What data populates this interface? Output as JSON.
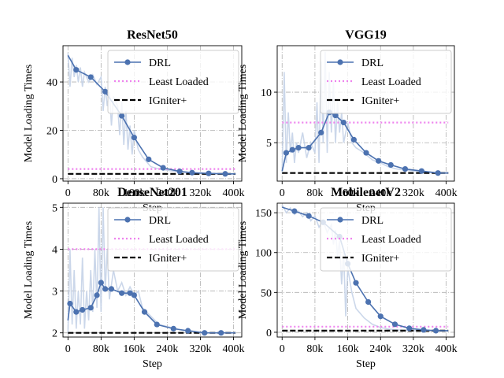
{
  "chart_data": [
    {
      "type": "line",
      "title": "ResNet50",
      "xlabel": "Step",
      "ylabel": "Model Loading Times",
      "xlim": [
        -12000,
        420000
      ],
      "ylim": [
        -1,
        55
      ],
      "xticks": [
        0,
        80000,
        160000,
        240000,
        320000,
        400000
      ],
      "xtick_labels": [
        "0",
        "80k",
        "160k",
        "240k",
        "320k",
        "400k"
      ],
      "yticks": [
        0,
        20,
        40
      ],
      "ytick_labels": [
        "0",
        "20",
        "40"
      ],
      "grid": true,
      "legend_position": "upper-right",
      "series": [
        {
          "name": "DRL",
          "style": "line-marker",
          "color": "#4c72b0",
          "x": [
            0,
            20000,
            55000,
            90000,
            130000,
            160000,
            195000,
            230000,
            270000,
            300000,
            340000,
            380000,
            405000
          ],
          "y": [
            51,
            45,
            42,
            36,
            26,
            17,
            8,
            4.5,
            3,
            2.5,
            2.2,
            2,
            2
          ]
        },
        {
          "name": "raw",
          "style": "raw",
          "color": "#c5d3e8",
          "x": [
            0,
            5000,
            10000,
            15000,
            20000,
            25000,
            30000,
            35000,
            40000,
            50000,
            60000,
            70000,
            80000,
            85000,
            90000,
            95000,
            100000,
            105000,
            110000,
            120000,
            125000,
            130000,
            135000,
            140000,
            145000,
            150000,
            155000,
            160000,
            170000,
            180000,
            190000,
            200000,
            220000,
            240000,
            260000,
            280000,
            300000,
            320000,
            350000,
            380000,
            405000
          ],
          "y": [
            52,
            38,
            50,
            42,
            47,
            40,
            46,
            38,
            44,
            40,
            43,
            39,
            42,
            28,
            38,
            30,
            36,
            22,
            34,
            30,
            18,
            32,
            14,
            28,
            12,
            22,
            10,
            20,
            12,
            9,
            7,
            5,
            4,
            3.5,
            3,
            2.8,
            2.5,
            2.2,
            2,
            2,
            2
          ]
        },
        {
          "name": "Least Loaded",
          "style": "dotted",
          "color": "#ee82ee",
          "x": [
            0,
            405000
          ],
          "y": [
            4,
            4
          ]
        },
        {
          "name": "IGniter+",
          "style": "dashed",
          "color": "#000000",
          "x": [
            0,
            405000
          ],
          "y": [
            2,
            2
          ]
        }
      ]
    },
    {
      "type": "line",
      "title": "VGG19",
      "xlabel": "Step",
      "ylabel": "Model Loading Times",
      "xlim": [
        -12000,
        420000
      ],
      "ylim": [
        1.2,
        14.6
      ],
      "xticks": [
        0,
        80000,
        160000,
        240000,
        320000,
        400000
      ],
      "xtick_labels": [
        "0",
        "80k",
        "160k",
        "240k",
        "320k",
        "400k"
      ],
      "yticks": [
        5,
        10
      ],
      "ytick_labels": [
        "5",
        "10"
      ],
      "grid": true,
      "legend_position": "upper-right",
      "series": [
        {
          "name": "DRL",
          "style": "line-marker",
          "color": "#4c72b0",
          "x": [
            0,
            10000,
            25000,
            40000,
            65000,
            95000,
            115000,
            130000,
            150000,
            175000,
            205000,
            235000,
            265000,
            300000,
            340000,
            380000,
            405000
          ],
          "y": [
            2.2,
            4,
            4.3,
            4.5,
            4.5,
            6,
            8,
            7.7,
            7,
            5.3,
            4,
            3.2,
            2.8,
            2.4,
            2.2,
            2,
            2
          ]
        },
        {
          "name": "raw",
          "style": "raw",
          "color": "#c5d3e8",
          "x": [
            0,
            5000,
            10000,
            15000,
            20000,
            25000,
            30000,
            35000,
            40000,
            50000,
            60000,
            70000,
            80000,
            85000,
            90000,
            95000,
            100000,
            105000,
            110000,
            115000,
            120000,
            125000,
            130000,
            135000,
            140000,
            145000,
            150000,
            160000,
            170000,
            180000,
            200000,
            220000,
            240000,
            260000,
            280000,
            300000,
            320000,
            350000,
            380000,
            405000
          ],
          "y": [
            2,
            12,
            3,
            8,
            4,
            6,
            3,
            5,
            4,
            6,
            3.5,
            5,
            4,
            9,
            3,
            13,
            5,
            14,
            4,
            12,
            6,
            11,
            5,
            9,
            6,
            8,
            5,
            7,
            5,
            4.5,
            4,
            3.3,
            3,
            2.6,
            2.4,
            2.3,
            2.2,
            2.1,
            2,
            2
          ]
        },
        {
          "name": "Least Loaded",
          "style": "dotted",
          "color": "#ee82ee",
          "x": [
            0,
            405000
          ],
          "y": [
            7,
            7
          ]
        },
        {
          "name": "IGniter+",
          "style": "dashed",
          "color": "#000000",
          "x": [
            0,
            405000
          ],
          "y": [
            2,
            2
          ]
        }
      ]
    },
    {
      "type": "line",
      "title": "DenseNet201",
      "xlabel": "Step",
      "ylabel": "Model Loading Times",
      "xlim": [
        -12000,
        420000
      ],
      "ylim": [
        1.9,
        5.1
      ],
      "xticks": [
        0,
        80000,
        160000,
        240000,
        320000,
        400000
      ],
      "xtick_labels": [
        "0",
        "80k",
        "160k",
        "240k",
        "320k",
        "400k"
      ],
      "yticks": [
        2,
        3,
        4,
        5
      ],
      "ytick_labels": [
        "2",
        "3",
        "4",
        "5"
      ],
      "grid": true,
      "legend_position": "upper-right",
      "series": [
        {
          "name": "DRL",
          "style": "line-marker",
          "color": "#4c72b0",
          "x": [
            0,
            5000,
            20000,
            35000,
            55000,
            70000,
            80000,
            90000,
            105000,
            130000,
            150000,
            160000,
            185000,
            215000,
            255000,
            290000,
            330000,
            370000,
            405000
          ],
          "y": [
            2.3,
            2.7,
            2.5,
            2.55,
            2.6,
            2.9,
            3.2,
            3.05,
            3.05,
            2.95,
            2.95,
            2.9,
            2.5,
            2.2,
            2.1,
            2.05,
            2,
            2,
            2
          ]
        },
        {
          "name": "raw",
          "style": "raw",
          "color": "#c5d3e8",
          "x": [
            0,
            5000,
            10000,
            15000,
            20000,
            25000,
            30000,
            35000,
            40000,
            45000,
            50000,
            55000,
            60000,
            65000,
            70000,
            75000,
            80000,
            85000,
            90000,
            95000,
            100000,
            110000,
            120000,
            130000,
            140000,
            150000,
            160000,
            170000,
            180000,
            200000,
            220000,
            240000,
            260000,
            280000,
            300000,
            320000,
            350000,
            380000,
            405000
          ],
          "y": [
            2,
            4,
            2.2,
            3.5,
            2.1,
            3,
            2.2,
            3.8,
            2.1,
            3,
            2.3,
            3.5,
            2.5,
            4,
            2.6,
            5,
            2.5,
            5,
            3,
            4,
            2.8,
            3.5,
            3,
            3.2,
            2.9,
            3.1,
            2.9,
            3,
            2.6,
            2.4,
            2.2,
            2.15,
            2.1,
            2.05,
            2.05,
            2,
            2,
            2,
            2
          ]
        },
        {
          "name": "Least Loaded",
          "style": "dotted",
          "color": "#ee82ee",
          "x": [
            0,
            405000
          ],
          "y": [
            4,
            4
          ]
        },
        {
          "name": "IGniter+",
          "style": "dashed",
          "color": "#000000",
          "x": [
            0,
            405000
          ],
          "y": [
            2,
            2
          ]
        }
      ]
    },
    {
      "type": "line",
      "title": "MobilenetV2",
      "xlabel": "Step",
      "ylabel": "Model Loading Times",
      "xlim": [
        -12000,
        420000
      ],
      "ylim": [
        -6,
        162
      ],
      "xticks": [
        0,
        80000,
        160000,
        240000,
        320000,
        400000
      ],
      "xtick_labels": [
        "0",
        "80k",
        "160k",
        "240k",
        "320k",
        "400k"
      ],
      "yticks": [
        0,
        50,
        100,
        150
      ],
      "ytick_labels": [
        "0",
        "50",
        "100",
        "150"
      ],
      "grid": true,
      "legend_position": "upper-right",
      "series": [
        {
          "name": "DRL",
          "style": "line-marker",
          "color": "#4c72b0",
          "x": [
            0,
            30000,
            65000,
            100000,
            140000,
            160000,
            180000,
            210000,
            240000,
            275000,
            310000,
            345000,
            375000,
            405000
          ],
          "y": [
            157,
            152,
            146,
            138,
            120,
            86,
            62,
            38,
            20,
            10,
            5,
            3,
            2,
            2
          ]
        },
        {
          "name": "raw",
          "style": "raw",
          "color": "#c5d3e8",
          "x": [
            0,
            10000,
            20000,
            30000,
            40000,
            50000,
            60000,
            70000,
            80000,
            90000,
            100000,
            110000,
            120000,
            125000,
            130000,
            135000,
            140000,
            145000,
            150000,
            155000,
            160000,
            170000,
            180000,
            200000,
            220000,
            240000,
            260000,
            280000,
            300000,
            320000,
            350000,
            380000,
            405000
          ],
          "y": [
            160,
            150,
            156,
            148,
            152,
            145,
            150,
            140,
            146,
            132,
            140,
            125,
            135,
            110,
            128,
            95,
            115,
            60,
            100,
            20,
            80,
            50,
            30,
            18,
            10,
            6,
            4,
            3,
            2.5,
            2,
            2,
            2,
            2
          ]
        },
        {
          "name": "Least Loaded",
          "style": "dotted",
          "color": "#ee82ee",
          "x": [
            0,
            405000
          ],
          "y": [
            7,
            7
          ]
        },
        {
          "name": "IGniter+",
          "style": "dashed",
          "color": "#000000",
          "x": [
            0,
            405000
          ],
          "y": [
            2,
            2
          ]
        }
      ]
    }
  ],
  "legend_labels": [
    "DRL",
    "Least Loaded",
    "IGniter+"
  ]
}
